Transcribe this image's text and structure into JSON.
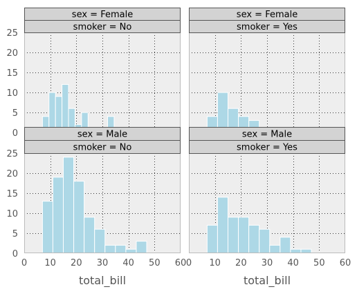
{
  "chart_data": {
    "type": "bar",
    "layout": "facet grid, 2 rows x 2 columns, stacked two-level strip headers",
    "xlabel": "total_bill",
    "xlim": [
      0,
      60
    ],
    "xticks": [
      "0",
      "10",
      "20",
      "30",
      "40",
      "50",
      "60"
    ],
    "ylim": [
      0,
      25
    ],
    "yticks": [
      "0",
      "5",
      "10",
      "15",
      "20",
      "25"
    ],
    "grid": true,
    "colors": {
      "bar_fill": "#add8e6",
      "bar_edge": "#ffffff",
      "panel_bg": "#eeeeee",
      "panel_border": "#bbbbbb",
      "strip_bg": "#d3d3d3",
      "strip_border": "#555555",
      "grid": "#333333",
      "tick_text": "#555555"
    },
    "panels": [
      {
        "strip_top": "sex = Female",
        "strip_bottom": "smoker = No",
        "bins": [
          {
            "x0": 7.0,
            "x1": 9.5,
            "count": 4
          },
          {
            "x0": 9.5,
            "x1": 12.0,
            "count": 10
          },
          {
            "x0": 12.0,
            "x1": 14.5,
            "count": 9
          },
          {
            "x0": 14.5,
            "x1": 17.0,
            "count": 12
          },
          {
            "x0": 17.0,
            "x1": 19.5,
            "count": 6
          },
          {
            "x0": 19.5,
            "x1": 22.0,
            "count": 2
          },
          {
            "x0": 22.0,
            "x1": 24.5,
            "count": 5
          },
          {
            "x0": 24.5,
            "x1": 27.0,
            "count": 1
          },
          {
            "x0": 27.0,
            "x1": 29.5,
            "count": 1
          },
          {
            "x0": 32.0,
            "x1": 34.5,
            "count": 4
          },
          {
            "x0": 34.5,
            "x1": 37.0,
            "count": 1
          }
        ]
      },
      {
        "strip_top": "sex = Female",
        "strip_bottom": "smoker = Yes",
        "bins": [
          {
            "x0": 3.0,
            "x1": 7.0,
            "count": 1
          },
          {
            "x0": 7.0,
            "x1": 11.0,
            "count": 4
          },
          {
            "x0": 11.0,
            "x1": 15.0,
            "count": 10
          },
          {
            "x0": 15.0,
            "x1": 19.0,
            "count": 6
          },
          {
            "x0": 19.0,
            "x1": 23.0,
            "count": 4
          },
          {
            "x0": 23.0,
            "x1": 27.0,
            "count": 3
          },
          {
            "x0": 27.0,
            "x1": 31.0,
            "count": 1
          },
          {
            "x0": 31.0,
            "x1": 35.0,
            "count": 0
          },
          {
            "x0": 35.0,
            "x1": 39.0,
            "count": 0
          },
          {
            "x0": 39.0,
            "x1": 43.0,
            "count": 1
          }
        ]
      },
      {
        "strip_top": "sex = Male",
        "strip_bottom": "smoker = No",
        "bins": [
          {
            "x0": 7.0,
            "x1": 11.0,
            "count": 13
          },
          {
            "x0": 11.0,
            "x1": 15.0,
            "count": 19
          },
          {
            "x0": 15.0,
            "x1": 19.0,
            "count": 24
          },
          {
            "x0": 19.0,
            "x1": 23.0,
            "count": 18
          },
          {
            "x0": 23.0,
            "x1": 27.0,
            "count": 9
          },
          {
            "x0": 27.0,
            "x1": 31.0,
            "count": 6
          },
          {
            "x0": 31.0,
            "x1": 35.0,
            "count": 2
          },
          {
            "x0": 35.0,
            "x1": 39.0,
            "count": 2
          },
          {
            "x0": 39.0,
            "x1": 43.0,
            "count": 1
          },
          {
            "x0": 43.0,
            "x1": 47.0,
            "count": 3
          },
          {
            "x0": 47.0,
            "x1": 51.0,
            "count": 0
          }
        ]
      },
      {
        "strip_top": "sex = Male",
        "strip_bottom": "smoker = Yes",
        "bins": [
          {
            "x0": 7.0,
            "x1": 11.0,
            "count": 7
          },
          {
            "x0": 11.0,
            "x1": 15.0,
            "count": 14
          },
          {
            "x0": 15.0,
            "x1": 19.0,
            "count": 9
          },
          {
            "x0": 19.0,
            "x1": 23.0,
            "count": 9
          },
          {
            "x0": 23.0,
            "x1": 27.0,
            "count": 7
          },
          {
            "x0": 27.0,
            "x1": 31.0,
            "count": 6
          },
          {
            "x0": 31.0,
            "x1": 35.0,
            "count": 2
          },
          {
            "x0": 35.0,
            "x1": 39.0,
            "count": 4
          },
          {
            "x0": 39.0,
            "x1": 43.0,
            "count": 1
          },
          {
            "x0": 43.0,
            "x1": 47.0,
            "count": 1
          }
        ]
      }
    ]
  }
}
